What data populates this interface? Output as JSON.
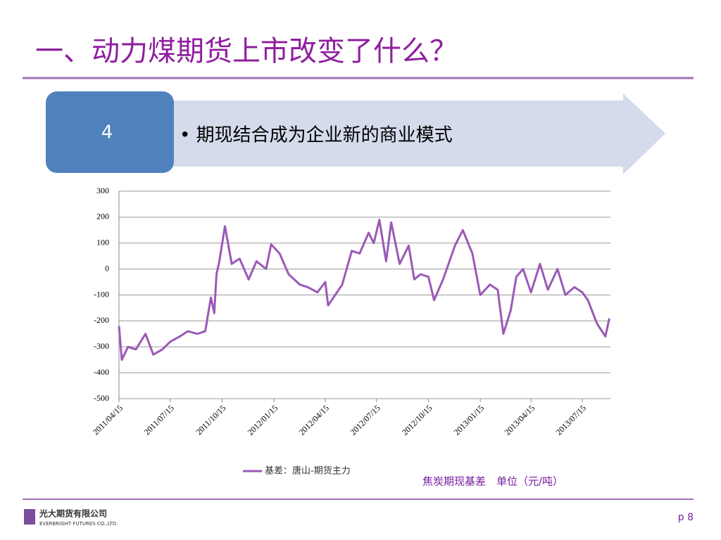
{
  "slide": {
    "title": "一、动力煤期货上市改变了什么？",
    "step_number": "4",
    "step_text": "• 期现结合成为企业新的商业模式",
    "company_cn": "光大期货有限公司",
    "company_en": "EVERBRIGHT FUTURES CO.,LTD.",
    "page": "p 8"
  },
  "chart_data": {
    "type": "line",
    "annotation": "焦炭期现基差　单位（元/吨）",
    "x": [
      "2011/04/15",
      "2011/04/20",
      "2011/05/01",
      "2011/05/15",
      "2011/06/01",
      "2011/06/15",
      "2011/07/01",
      "2011/07/15",
      "2011/08/01",
      "2011/08/15",
      "2011/09/01",
      "2011/09/15",
      "2011/09/25",
      "2011/10/01",
      "2011/10/05",
      "2011/10/10",
      "2011/10/20",
      "2011/11/01",
      "2011/11/15",
      "2011/12/01",
      "2011/12/15",
      "2012/01/01",
      "2012/01/10",
      "2012/01/25",
      "2012/02/10",
      "2012/03/01",
      "2012/03/15",
      "2012/04/01",
      "2012/04/15",
      "2012/04/20",
      "2012/05/15",
      "2012/06/01",
      "2012/06/15",
      "2012/07/01",
      "2012/07/10",
      "2012/07/20",
      "2012/08/01",
      "2012/08/10",
      "2012/08/25",
      "2012/09/10",
      "2012/09/20",
      "2012/10/01",
      "2012/10/15",
      "2012/10/25",
      "2012/11/10",
      "2012/12/01",
      "2012/12/15",
      "2013/01/01",
      "2013/01/15",
      "2013/02/01",
      "2013/02/15",
      "2013/02/25",
      "2013/03/10",
      "2013/03/20",
      "2013/04/01",
      "2013/04/15",
      "2013/05/01",
      "2013/05/15",
      "2013/06/01",
      "2013/06/15",
      "2013/07/01",
      "2013/07/15",
      "2013/07/25",
      "2013/08/10",
      "2013/08/25",
      "2013/09/01"
    ],
    "series": [
      {
        "name": "基差：唐山-期货主力",
        "color": "#9b59b6",
        "values": [
          -220,
          -350,
          -300,
          -310,
          -250,
          -330,
          -310,
          -280,
          -260,
          -240,
          -250,
          -240,
          -110,
          -170,
          -20,
          30,
          165,
          20,
          40,
          -40,
          30,
          0,
          95,
          60,
          -20,
          -60,
          -70,
          -90,
          -50,
          -140,
          -60,
          70,
          60,
          140,
          100,
          190,
          30,
          180,
          20,
          90,
          -40,
          -20,
          -30,
          -120,
          -40,
          90,
          150,
          60,
          -100,
          -60,
          -80,
          -250,
          -160,
          -30,
          0,
          -90,
          20,
          -80,
          0,
          -100,
          -70,
          -90,
          -120,
          -210,
          -260,
          -190
        ]
      }
    ],
    "xlim": [
      "2011/04/15",
      "2013/09/03"
    ],
    "xticks": [
      "2011/04/15",
      "2011/07/15",
      "2011/10/15",
      "2012/01/15",
      "2012/04/15",
      "2012/07/15",
      "2012/10/15",
      "2013/01/15",
      "2013/04/15",
      "2013/07/15"
    ],
    "ylim": [
      -500,
      300
    ],
    "yticks": [
      -500,
      -400,
      -300,
      -200,
      -100,
      0,
      100,
      200,
      300
    ],
    "grid": true,
    "legend": "bottom"
  }
}
